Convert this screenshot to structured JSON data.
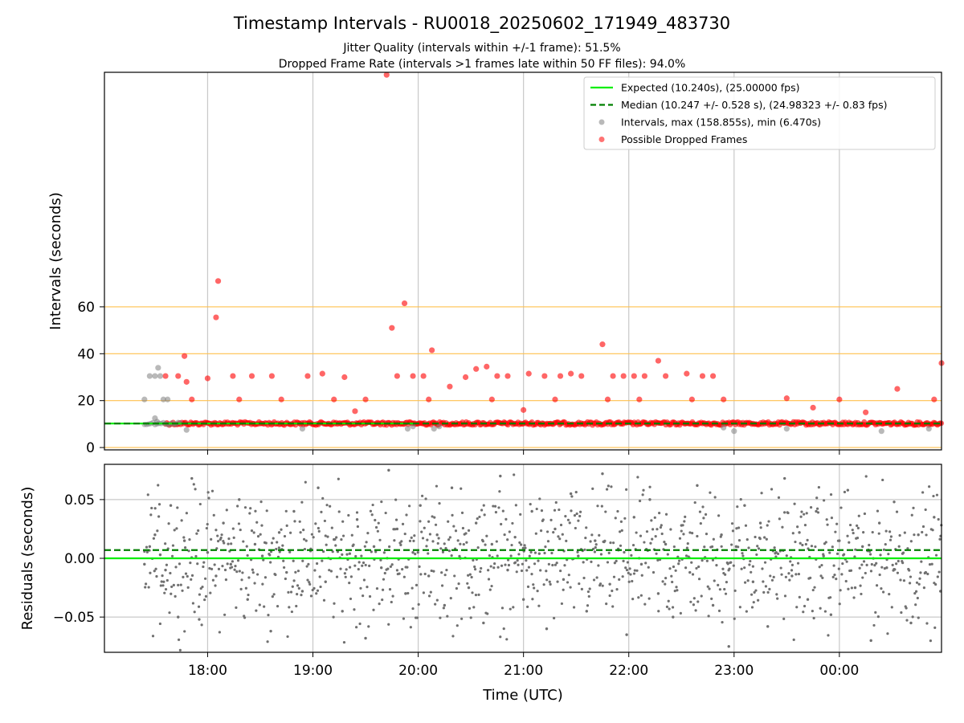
{
  "chart_data": [
    {
      "type": "scatter",
      "title": "Timestamp Intervals - RU0018_20250602_171949_483730",
      "subtitle_lines": [
        "Jitter Quality (intervals within +/-1 frame): 51.5%",
        "Dropped Frame Rate (intervals >1 frames late within 50 FF files): 94.0%"
      ],
      "xlabel": "",
      "ylabel": "Intervals (seconds)",
      "x_time_range_hours": [
        17.02,
        24.97
      ],
      "ylim": [
        -1,
        160
      ],
      "yticks": [
        0,
        20,
        40,
        60
      ],
      "ytick_labels": [
        "0",
        "20",
        "40",
        "60"
      ],
      "grid": true,
      "reference_lines": [
        {
          "name": "Expected (10.240s), (25.00000 fps)",
          "value": 10.24,
          "color": "#00ee00",
          "style": "solid"
        },
        {
          "name": "Median (10.247 +/- 0.528 s), (24.98323 +/- 0.83 fps)",
          "value": 10.247,
          "color": "#007f00",
          "style": "dashed"
        }
      ],
      "threshold_lines": [
        {
          "value": 0,
          "color": "#ffc04d"
        },
        {
          "value": 20,
          "color": "#ffc04d"
        },
        {
          "value": 40,
          "color": "#ffc04d"
        },
        {
          "value": 60,
          "color": "#ffc04d"
        }
      ],
      "legend": {
        "placement": "top-right",
        "entries": [
          {
            "label": "Expected (10.240s), (25.00000 fps)",
            "kind": "line",
            "color": "#00ee00"
          },
          {
            "label": "Median (10.247 +/- 0.528 s), (24.98323 +/- 0.83 fps)",
            "kind": "dashed",
            "color": "#007f00"
          },
          {
            "label": "Intervals, max (158.855s), min (6.470s)",
            "kind": "marker",
            "color": "#808080"
          },
          {
            "label": "Possible Dropped Frames",
            "kind": "marker",
            "color": "#ff0000"
          }
        ]
      },
      "series": [
        {
          "name": "Possible Dropped Frames",
          "color": "#ff0000",
          "points": [
            [
              19.7,
              158.9
            ],
            [
              18.1,
              71.0
            ],
            [
              18.08,
              55.5
            ],
            [
              19.87,
              61.5
            ],
            [
              19.75,
              51.0
            ],
            [
              20.13,
              41.5
            ],
            [
              21.75,
              44.0
            ],
            [
              22.28,
              37.0
            ],
            [
              17.78,
              39.0
            ],
            [
              24.97,
              36.0
            ],
            [
              19.09,
              31.5
            ],
            [
              19.3,
              30.0
            ],
            [
              18.24,
              30.5
            ],
            [
              18.42,
              30.5
            ],
            [
              18.61,
              30.5
            ],
            [
              18.95,
              30.5
            ],
            [
              19.8,
              30.5
            ],
            [
              19.95,
              30.5
            ],
            [
              20.05,
              30.5
            ],
            [
              20.45,
              30.0
            ],
            [
              20.55,
              33.5
            ],
            [
              20.65,
              34.5
            ],
            [
              20.75,
              30.5
            ],
            [
              20.85,
              30.5
            ],
            [
              21.05,
              31.5
            ],
            [
              21.2,
              30.5
            ],
            [
              21.35,
              30.5
            ],
            [
              21.45,
              31.5
            ],
            [
              21.55,
              30.5
            ],
            [
              21.85,
              30.5
            ],
            [
              21.95,
              30.5
            ],
            [
              22.05,
              30.5
            ],
            [
              22.15,
              30.5
            ],
            [
              22.35,
              30.5
            ],
            [
              22.55,
              31.5
            ],
            [
              22.7,
              30.5
            ],
            [
              22.8,
              30.5
            ],
            [
              18.0,
              29.5
            ],
            [
              17.6,
              30.5
            ],
            [
              17.72,
              30.5
            ],
            [
              24.55,
              25.0
            ],
            [
              17.8,
              28.0
            ],
            [
              20.3,
              26.0
            ],
            [
              23.5,
              21.0
            ],
            [
              24.0,
              20.5
            ],
            [
              24.9,
              20.5
            ],
            [
              17.85,
              20.5
            ],
            [
              18.3,
              20.5
            ],
            [
              18.7,
              20.5
            ],
            [
              19.2,
              20.5
            ],
            [
              19.5,
              20.5
            ],
            [
              20.1,
              20.5
            ],
            [
              20.7,
              20.5
            ],
            [
              21.3,
              20.5
            ],
            [
              21.8,
              20.5
            ],
            [
              22.1,
              20.5
            ],
            [
              22.6,
              20.5
            ],
            [
              22.9,
              20.5
            ],
            [
              23.75,
              17.0
            ],
            [
              24.25,
              15.0
            ],
            [
              21.0,
              16.0
            ],
            [
              19.4,
              15.5
            ]
          ]
        },
        {
          "name": "Intervals, max (158.855s), min (6.470s)",
          "color": "#808080",
          "points": [
            [
              17.4,
              20.5
            ],
            [
              17.45,
              30.5
            ],
            [
              17.5,
              30.5
            ],
            [
              17.53,
              34.0
            ],
            [
              17.55,
              30.5
            ],
            [
              17.58,
              20.5
            ],
            [
              17.62,
              20.5
            ],
            [
              17.5,
              12.5
            ],
            [
              17.52,
              11.0
            ],
            [
              17.8,
              7.5
            ],
            [
              19.9,
              8.0
            ],
            [
              19.95,
              9.0
            ],
            [
              20.15,
              8.0
            ],
            [
              23.0,
              7.0
            ],
            [
              24.4,
              7.0
            ],
            [
              23.5,
              8.0
            ],
            [
              18.9,
              8.0
            ],
            [
              20.2,
              9.0
            ],
            [
              22.9,
              8.5
            ],
            [
              24.85,
              8.0
            ]
          ]
        }
      ]
    },
    {
      "type": "scatter",
      "title": "",
      "xlabel": "Time (UTC)",
      "ylabel": "Residuals (seconds)",
      "x_time_range_hours": [
        17.02,
        24.97
      ],
      "xticks_hours": [
        18,
        19,
        20,
        21,
        22,
        23,
        24
      ],
      "xtick_labels": [
        "18:00",
        "19:00",
        "20:00",
        "21:00",
        "22:00",
        "23:00",
        "00:00"
      ],
      "ylim": [
        -0.08,
        0.08
      ],
      "yticks": [
        0.05,
        0.0,
        -0.05
      ],
      "ytick_labels": [
        "0.05",
        "0.00",
        "−0.05"
      ],
      "grid": true,
      "reference_lines": [
        {
          "value": 0.0,
          "color": "#00ee00",
          "style": "solid"
        },
        {
          "value": 0.007,
          "color": "#007f00",
          "style": "dashed"
        }
      ],
      "series": [
        {
          "color": "#808080",
          "points": [
            [
              17.4,
              -0.005
            ],
            [
              17.45,
              0.01
            ],
            [
              17.5,
              0.02
            ],
            [
              17.55,
              0.003
            ],
            [
              17.6,
              -0.01
            ],
            [
              17.65,
              0.045
            ],
            [
              17.72,
              -0.05
            ],
            [
              17.78,
              0.015
            ],
            [
              17.85,
              0.068
            ],
            [
              17.92,
              -0.052
            ],
            [
              18.0,
              0.005
            ],
            [
              18.08,
              -0.015
            ],
            [
              18.15,
              0.03
            ],
            [
              18.22,
              -0.005
            ],
            [
              18.3,
              0.05
            ],
            [
              18.38,
              -0.035
            ],
            [
              18.45,
              0.012
            ],
            [
              18.52,
              0.002
            ],
            [
              18.6,
              -0.062
            ],
            [
              18.68,
              0.022
            ],
            [
              18.75,
              -0.012
            ],
            [
              18.82,
              0.04
            ],
            [
              18.9,
              -0.028
            ],
            [
              18.98,
              0.008
            ],
            [
              19.05,
              0.06
            ],
            [
              19.12,
              -0.02
            ],
            [
              19.2,
              0.016
            ],
            [
              19.28,
              -0.045
            ],
            [
              19.35,
              0.004
            ],
            [
              19.42,
              0.033
            ],
            [
              19.5,
              -0.068
            ],
            [
              19.58,
              0.01
            ],
            [
              19.65,
              -0.008
            ],
            [
              19.72,
              0.075
            ],
            [
              19.8,
              0.025
            ],
            [
              19.88,
              -0.03
            ],
            [
              19.95,
              0.005
            ],
            [
              20.02,
              0.045
            ],
            [
              20.1,
              -0.015
            ],
            [
              20.18,
              0.02
            ],
            [
              20.25,
              -0.04
            ],
            [
              20.32,
              0.06
            ],
            [
              20.4,
              0.0
            ],
            [
              20.48,
              -0.025
            ],
            [
              20.55,
              0.03
            ],
            [
              20.62,
              -0.055
            ],
            [
              20.7,
              0.012
            ],
            [
              20.78,
              0.07
            ],
            [
              20.85,
              -0.01
            ],
            [
              20.92,
              0.018
            ],
            [
              21.0,
              -0.035
            ],
            [
              21.08,
              0.04
            ],
            [
              21.15,
              0.004
            ],
            [
              21.22,
              -0.06
            ],
            [
              21.3,
              0.025
            ],
            [
              21.38,
              -0.018
            ],
            [
              21.45,
              0.055
            ],
            [
              21.52,
              0.002
            ],
            [
              21.6,
              -0.045
            ],
            [
              21.68,
              0.015
            ],
            [
              21.75,
              0.072
            ],
            [
              21.82,
              -0.022
            ],
            [
              21.9,
              0.008
            ],
            [
              21.98,
              -0.065
            ],
            [
              22.05,
              0.035
            ],
            [
              22.12,
              -0.005
            ],
            [
              22.2,
              0.05
            ],
            [
              22.28,
              -0.03
            ],
            [
              22.35,
              0.012
            ],
            [
              22.42,
              -0.05
            ],
            [
              22.5,
              0.028
            ],
            [
              22.58,
              -0.012
            ],
            [
              22.65,
              0.062
            ],
            [
              22.72,
              0.0
            ],
            [
              22.8,
              -0.04
            ],
            [
              22.88,
              0.02
            ],
            [
              22.95,
              -0.075
            ],
            [
              23.02,
              0.01
            ],
            [
              23.1,
              0.045
            ],
            [
              23.18,
              -0.02
            ],
            [
              23.25,
              0.03
            ],
            [
              23.32,
              -0.058
            ],
            [
              23.4,
              0.005
            ],
            [
              23.48,
              0.068
            ],
            [
              23.55,
              -0.015
            ],
            [
              23.62,
              0.022
            ],
            [
              23.7,
              -0.035
            ],
            [
              23.78,
              0.04
            ],
            [
              23.85,
              0.002
            ],
            [
              23.92,
              -0.048
            ],
            [
              24.0,
              0.015
            ],
            [
              24.08,
              0.058
            ],
            [
              24.15,
              -0.025
            ],
            [
              24.22,
              0.01
            ],
            [
              24.3,
              -0.07
            ],
            [
              24.38,
              0.03
            ],
            [
              24.45,
              -0.008
            ],
            [
              24.52,
              0.048
            ],
            [
              24.6,
              0.004
            ],
            [
              24.68,
              -0.055
            ],
            [
              24.75,
              0.02
            ],
            [
              24.82,
              -0.012
            ],
            [
              24.9,
              0.035
            ],
            [
              24.96,
              -0.028
            ]
          ]
        }
      ]
    }
  ]
}
